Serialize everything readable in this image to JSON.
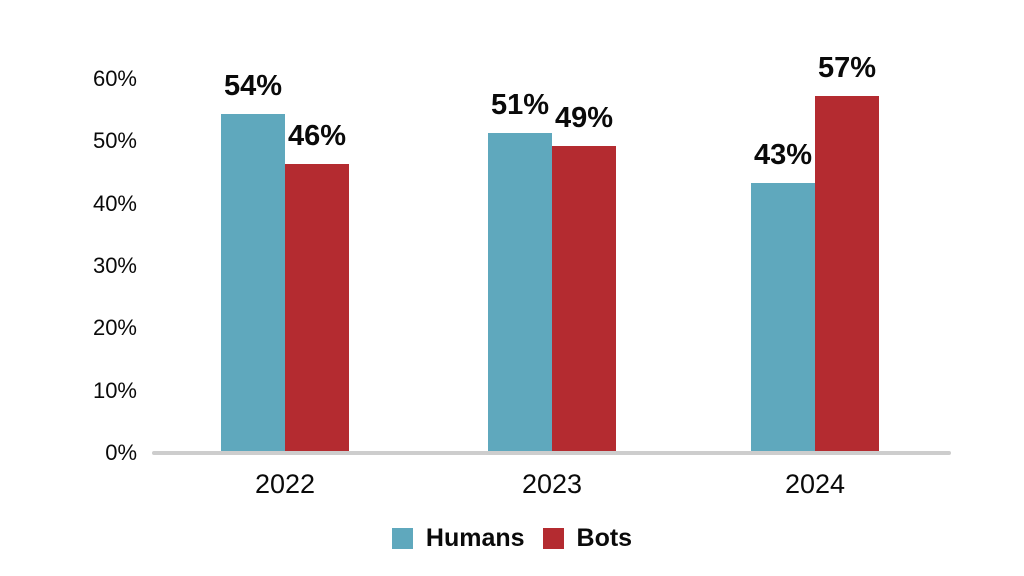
{
  "chart_data": {
    "type": "bar",
    "title": "",
    "xlabel": "",
    "ylabel": "",
    "categories": [
      "2022",
      "2023",
      "2024"
    ],
    "series": [
      {
        "name": "Humans",
        "color": "#5FA8BD",
        "values": [
          54,
          51,
          43
        ]
      },
      {
        "name": "Bots",
        "color": "#B42B30",
        "values": [
          46,
          49,
          57
        ]
      }
    ],
    "value_labels": [
      [
        "54%",
        "46%"
      ],
      [
        "51%",
        "49%"
      ],
      [
        "43%",
        "57%"
      ]
    ],
    "y_ticks": [
      "0%",
      "10%",
      "20%",
      "30%",
      "40%",
      "50%",
      "60%"
    ],
    "ylim": [
      0,
      60
    ],
    "grid": false,
    "legend_position": "bottom",
    "colors": {
      "axis_line": "#CDCDCD",
      "text": "#0A0A0A",
      "background": "#FFFFFF"
    }
  }
}
